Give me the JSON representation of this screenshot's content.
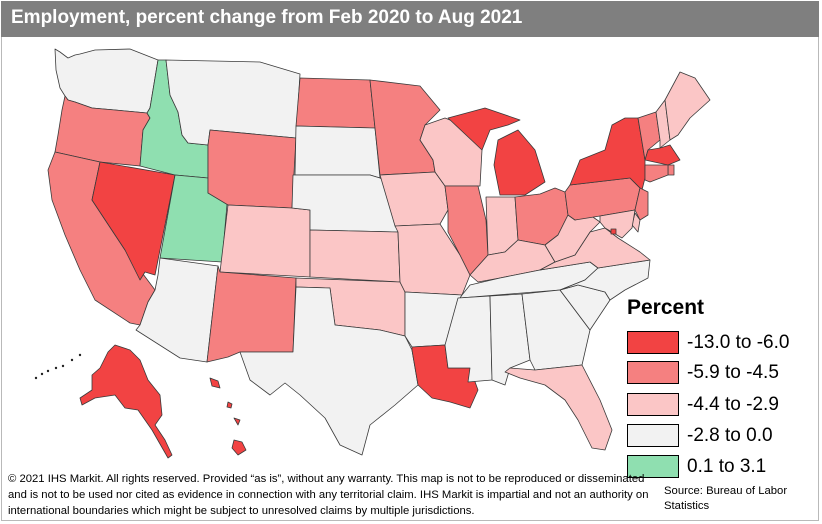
{
  "title": "Employment, percent change from Feb 2020 to Aug 2021",
  "legend": {
    "title": "Percent",
    "items": [
      {
        "label": "-13.0 to -6.0",
        "color": "#f24343"
      },
      {
        "label": "-5.9 to -4.5",
        "color": "#f58080"
      },
      {
        "label": "-4.4 to -2.9",
        "color": "#fbc6c6"
      },
      {
        "label": "-2.8 to 0.0",
        "color": "#f2f2f2"
      },
      {
        "label": "0.1 to 3.1",
        "color": "#8fdfb0"
      }
    ]
  },
  "footer": "© 2021 IHS Markit. All rights reserved. Provided “as is”, without any warranty. This map is not to be reproduced or disseminated and is not to be used nor cited as evidence in connection with any territorial claim. IHS Markit is impartial and not an authority on international boundaries which might be subject to unresolved claims by multiple jurisdictions.",
  "source": "Source: Bureau of Labor Statistics",
  "states": [
    {
      "id": "WA",
      "bucket": 3
    },
    {
      "id": "OR",
      "bucket": 1
    },
    {
      "id": "CA",
      "bucket": 1
    },
    {
      "id": "NV",
      "bucket": 0
    },
    {
      "id": "ID",
      "bucket": 4
    },
    {
      "id": "UT",
      "bucket": 4
    },
    {
      "id": "AZ",
      "bucket": 3
    },
    {
      "id": "MT",
      "bucket": 3
    },
    {
      "id": "WY",
      "bucket": 1
    },
    {
      "id": "CO",
      "bucket": 2
    },
    {
      "id": "NM",
      "bucket": 1
    },
    {
      "id": "ND",
      "bucket": 1
    },
    {
      "id": "SD",
      "bucket": 3
    },
    {
      "id": "NE",
      "bucket": 3
    },
    {
      "id": "KS",
      "bucket": 2
    },
    {
      "id": "OK",
      "bucket": 2
    },
    {
      "id": "TX",
      "bucket": 3
    },
    {
      "id": "MN",
      "bucket": 1
    },
    {
      "id": "IA",
      "bucket": 2
    },
    {
      "id": "MO",
      "bucket": 2
    },
    {
      "id": "AR",
      "bucket": 3
    },
    {
      "id": "LA",
      "bucket": 0
    },
    {
      "id": "WI",
      "bucket": 2
    },
    {
      "id": "IL",
      "bucket": 1
    },
    {
      "id": "MI",
      "bucket": 0
    },
    {
      "id": "IN",
      "bucket": 2
    },
    {
      "id": "OH",
      "bucket": 1
    },
    {
      "id": "KY",
      "bucket": 2
    },
    {
      "id": "TN",
      "bucket": 3
    },
    {
      "id": "MS",
      "bucket": 3
    },
    {
      "id": "AL",
      "bucket": 3
    },
    {
      "id": "GA",
      "bucket": 3
    },
    {
      "id": "FL",
      "bucket": 2
    },
    {
      "id": "SC",
      "bucket": 3
    },
    {
      "id": "NC",
      "bucket": 3
    },
    {
      "id": "VA",
      "bucket": 2
    },
    {
      "id": "WV",
      "bucket": 2
    },
    {
      "id": "PA",
      "bucket": 1
    },
    {
      "id": "NY",
      "bucket": 0
    },
    {
      "id": "VT",
      "bucket": 1
    },
    {
      "id": "NH",
      "bucket": 2
    },
    {
      "id": "ME",
      "bucket": 2
    },
    {
      "id": "MA",
      "bucket": 0
    },
    {
      "id": "RI",
      "bucket": 1
    },
    {
      "id": "CT",
      "bucket": 1
    },
    {
      "id": "NJ",
      "bucket": 1
    },
    {
      "id": "DE",
      "bucket": 2
    },
    {
      "id": "MD",
      "bucket": 2
    },
    {
      "id": "DC",
      "bucket": 0
    },
    {
      "id": "AK",
      "bucket": 0
    },
    {
      "id": "HI",
      "bucket": 0
    }
  ]
}
